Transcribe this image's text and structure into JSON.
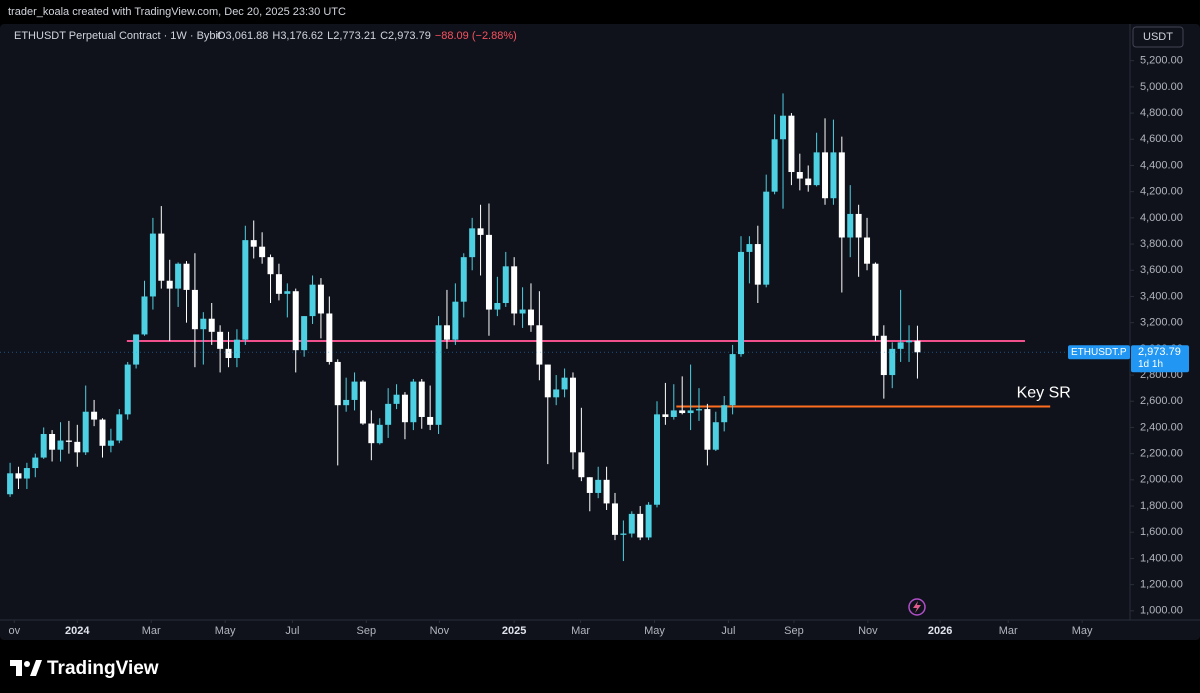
{
  "header": "trader_koala created with TradingView.com, Dec 20, 2025 23:30 UTC",
  "footer": "TradingView",
  "chart_data": {
    "type": "candlestick",
    "symbol": "ETHUSDT Perpetual Contract · 1W · Bybit",
    "summary": [
      "O3,061.88",
      "H3,176.62",
      "L2,773.21",
      "C2,973.79",
      "−88.09 (−2.88%)"
    ],
    "currency": "USDT",
    "up_color": "#4dd0e1",
    "down_color": "#ffffff",
    "ylim": [
      930,
      5480
    ],
    "xlim": [
      -1.2,
      133.3
    ],
    "grid": false,
    "yticks": [
      {
        "value": 1000,
        "label": "1,000.00"
      },
      {
        "value": 1200,
        "label": "1,200.00"
      },
      {
        "value": 1400,
        "label": "1,400.00"
      },
      {
        "value": 1600,
        "label": "1,600.00"
      },
      {
        "value": 1800,
        "label": "1,800.00"
      },
      {
        "value": 2000,
        "label": "2,000.00"
      },
      {
        "value": 2200,
        "label": "2,200.00"
      },
      {
        "value": 2400,
        "label": "2,400.00"
      },
      {
        "value": 2600,
        "label": "2,600.00"
      },
      {
        "value": 2800,
        "label": "2,800.00"
      },
      {
        "value": 3000,
        "label": "3,000.00"
      },
      {
        "value": 3200,
        "label": "3,200.00"
      },
      {
        "value": 3400,
        "label": "3,400.00"
      },
      {
        "value": 3600,
        "label": "3,600.00"
      },
      {
        "value": 3800,
        "label": "3,800.00"
      },
      {
        "value": 4000,
        "label": "4,000.00"
      },
      {
        "value": 4200,
        "label": "4,200.00"
      },
      {
        "value": 4400,
        "label": "4,400.00"
      },
      {
        "value": 4600,
        "label": "4,600.00"
      },
      {
        "value": 4800,
        "label": "4,800.00"
      },
      {
        "value": 5000,
        "label": "5,000.00"
      },
      {
        "value": 5200,
        "label": "5,200.00"
      }
    ],
    "xticks": [
      {
        "value": 0.5,
        "label": "ov"
      },
      {
        "value": 8,
        "label": "2024"
      },
      {
        "value": 16.8,
        "label": "Mar"
      },
      {
        "value": 25.6,
        "label": "May"
      },
      {
        "value": 33.6,
        "label": "Jul"
      },
      {
        "value": 42.4,
        "label": "Sep"
      },
      {
        "value": 51.1,
        "label": "Nov"
      },
      {
        "value": 60,
        "label": "2025"
      },
      {
        "value": 67.9,
        "label": "Mar"
      },
      {
        "value": 76.7,
        "label": "May"
      },
      {
        "value": 85.5,
        "label": "Jul"
      },
      {
        "value": 93.3,
        "label": "Sep"
      },
      {
        "value": 102.1,
        "label": "Nov"
      },
      {
        "value": 110.7,
        "label": "2026"
      },
      {
        "value": 118.8,
        "label": "Mar"
      },
      {
        "value": 127.6,
        "label": "May"
      }
    ],
    "ohlc": [
      [
        1890,
        2130,
        1870,
        2050
      ],
      [
        2050,
        2100,
        1930,
        2010
      ],
      [
        2010,
        2130,
        1930,
        2090
      ],
      [
        2090,
        2200,
        2020,
        2170
      ],
      [
        2170,
        2400,
        2160,
        2350
      ],
      [
        2350,
        2380,
        2140,
        2230
      ],
      [
        2230,
        2440,
        2140,
        2300
      ],
      [
        2300,
        2450,
        2200,
        2290
      ],
      [
        2290,
        2420,
        2100,
        2210
      ],
      [
        2210,
        2720,
        2190,
        2520
      ],
      [
        2520,
        2610,
        2410,
        2460
      ],
      [
        2460,
        2470,
        2170,
        2260
      ],
      [
        2260,
        2390,
        2210,
        2300
      ],
      [
        2300,
        2540,
        2280,
        2500
      ],
      [
        2500,
        2900,
        2460,
        2880
      ],
      [
        2880,
        3110,
        2850,
        3110
      ],
      [
        3110,
        3520,
        3100,
        3400
      ],
      [
        3400,
        4000,
        3300,
        3880
      ],
      [
        3880,
        4090,
        3460,
        3520
      ],
      [
        3520,
        3680,
        3060,
        3460
      ],
      [
        3460,
        3660,
        3320,
        3650
      ],
      [
        3650,
        3670,
        3200,
        3450
      ],
      [
        3450,
        3730,
        2860,
        3150
      ],
      [
        3150,
        3280,
        2880,
        3230
      ],
      [
        3230,
        3350,
        3030,
        3130
      ],
      [
        3130,
        3180,
        2820,
        3000
      ],
      [
        3000,
        3130,
        2860,
        2930
      ],
      [
        2930,
        3150,
        2860,
        3070
      ],
      [
        3070,
        3940,
        3030,
        3830
      ],
      [
        3830,
        3980,
        3690,
        3780
      ],
      [
        3780,
        3890,
        3650,
        3700
      ],
      [
        3700,
        3720,
        3350,
        3570
      ],
      [
        3570,
        3650,
        3370,
        3420
      ],
      [
        3420,
        3500,
        3240,
        3440
      ],
      [
        3440,
        3460,
        2820,
        2990
      ],
      [
        2990,
        3250,
        2940,
        3250
      ],
      [
        3250,
        3560,
        3190,
        3490
      ],
      [
        3490,
        3540,
        3080,
        3270
      ],
      [
        3270,
        3400,
        2880,
        2900
      ],
      [
        2900,
        2920,
        2110,
        2570
      ],
      [
        2570,
        2780,
        2520,
        2610
      ],
      [
        2610,
        2820,
        2530,
        2750
      ],
      [
        2750,
        2760,
        2420,
        2430
      ],
      [
        2430,
        2530,
        2150,
        2280
      ],
      [
        2280,
        2470,
        2270,
        2420
      ],
      [
        2420,
        2700,
        2320,
        2580
      ],
      [
        2580,
        2730,
        2540,
        2650
      ],
      [
        2650,
        2670,
        2310,
        2440
      ],
      [
        2440,
        2770,
        2380,
        2750
      ],
      [
        2750,
        2770,
        2390,
        2480
      ],
      [
        2480,
        2720,
        2380,
        2420
      ],
      [
        2420,
        3250,
        2350,
        3180
      ],
      [
        3180,
        3450,
        3000,
        3070
      ],
      [
        3070,
        3500,
        3030,
        3360
      ],
      [
        3360,
        3730,
        3240,
        3700
      ],
      [
        3700,
        4000,
        3600,
        3920
      ],
      [
        3920,
        4100,
        3560,
        3870
      ],
      [
        3870,
        4110,
        3100,
        3300
      ],
      [
        3300,
        3550,
        3250,
        3350
      ],
      [
        3350,
        3740,
        3320,
        3630
      ],
      [
        3630,
        3700,
        3180,
        3270
      ],
      [
        3270,
        3470,
        3160,
        3300
      ],
      [
        3300,
        3500,
        3130,
        3180
      ],
      [
        3180,
        3440,
        2760,
        2880
      ],
      [
        2880,
        2880,
        2120,
        2630
      ],
      [
        2630,
        2800,
        2570,
        2690
      ],
      [
        2690,
        2850,
        2630,
        2780
      ],
      [
        2780,
        2820,
        2080,
        2210
      ],
      [
        2210,
        2550,
        1990,
        2020
      ],
      [
        2020,
        2020,
        1760,
        1900
      ],
      [
        1900,
        2100,
        1860,
        2000
      ],
      [
        2000,
        2100,
        1770,
        1820
      ],
      [
        1820,
        1900,
        1540,
        1580
      ],
      [
        1580,
        1690,
        1380,
        1590
      ],
      [
        1590,
        1760,
        1560,
        1740
      ],
      [
        1740,
        1800,
        1540,
        1560
      ],
      [
        1560,
        1830,
        1540,
        1810
      ],
      [
        1810,
        2600,
        1790,
        2500
      ],
      [
        2500,
        2740,
        2420,
        2480
      ],
      [
        2480,
        2730,
        2460,
        2530
      ],
      [
        2530,
        2790,
        2500,
        2510
      ],
      [
        2510,
        2880,
        2380,
        2530
      ],
      [
        2530,
        2700,
        2450,
        2540
      ],
      [
        2540,
        2580,
        2110,
        2230
      ],
      [
        2230,
        2520,
        2220,
        2440
      ],
      [
        2440,
        2640,
        2370,
        2570
      ],
      [
        2570,
        3030,
        2500,
        2960
      ],
      [
        2960,
        3860,
        2940,
        3740
      ],
      [
        3740,
        3860,
        3500,
        3800
      ],
      [
        3800,
        3940,
        3350,
        3490
      ],
      [
        3490,
        4330,
        3470,
        4200
      ],
      [
        4200,
        4790,
        4180,
        4600
      ],
      [
        4600,
        4950,
        4070,
        4780
      ],
      [
        4780,
        4800,
        4250,
        4350
      ],
      [
        4350,
        4490,
        4210,
        4300
      ],
      [
        4300,
        4400,
        4200,
        4250
      ],
      [
        4250,
        4650,
        4240,
        4500
      ],
      [
        4500,
        4760,
        4100,
        4150
      ],
      [
        4150,
        4750,
        4100,
        4500
      ],
      [
        4500,
        4620,
        3430,
        3850
      ],
      [
        3850,
        4250,
        3700,
        4030
      ],
      [
        4030,
        4100,
        3550,
        3850
      ],
      [
        3850,
        4000,
        3600,
        3650
      ],
      [
        3650,
        3660,
        3060,
        3100
      ],
      [
        3100,
        3180,
        2620,
        2800
      ],
      [
        2800,
        3050,
        2700,
        3000
      ],
      [
        3000,
        3450,
        2900,
        3050
      ],
      [
        3050,
        3180,
        2900,
        3062
      ],
      [
        3061.88,
        3176.62,
        2773.21,
        2973.79
      ]
    ],
    "lines": [
      {
        "value": 3060,
        "color": "#f0508c",
        "x_range": [
          13.9,
          120.8
        ]
      },
      {
        "value": 2560,
        "color": "#ff6d1f",
        "x_range": [
          79.3,
          123.8
        ]
      }
    ],
    "annotation": {
      "text": "Key SR",
      "value": 2660,
      "x": 119.8
    },
    "price_label": {
      "symbol": "ETHUSDT.P",
      "price": "2,973.79",
      "value": 2973.79,
      "countdown": "1d 1h"
    }
  }
}
